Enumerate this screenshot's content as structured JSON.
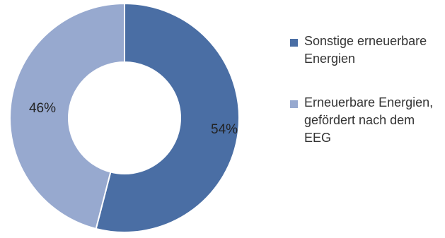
{
  "chart_data": {
    "type": "pie",
    "variant": "donut",
    "slices": [
      {
        "name": "Sonstige erneuerbare Energien",
        "value": 54,
        "label": "54%",
        "color": "#4a6ea4"
      },
      {
        "name": "Erneuerbare Energien, gefördert nach dem EEG",
        "value": 46,
        "label": "46%",
        "color": "#97a9cf"
      }
    ],
    "legend_position": "right"
  },
  "legend": {
    "items": [
      {
        "label": "Sonstige erneuerbare Energien",
        "color": "#4a6ea4"
      },
      {
        "label": "Erneuerbare Energien, gefördert nach dem EEG",
        "color": "#97a9cf"
      }
    ]
  }
}
